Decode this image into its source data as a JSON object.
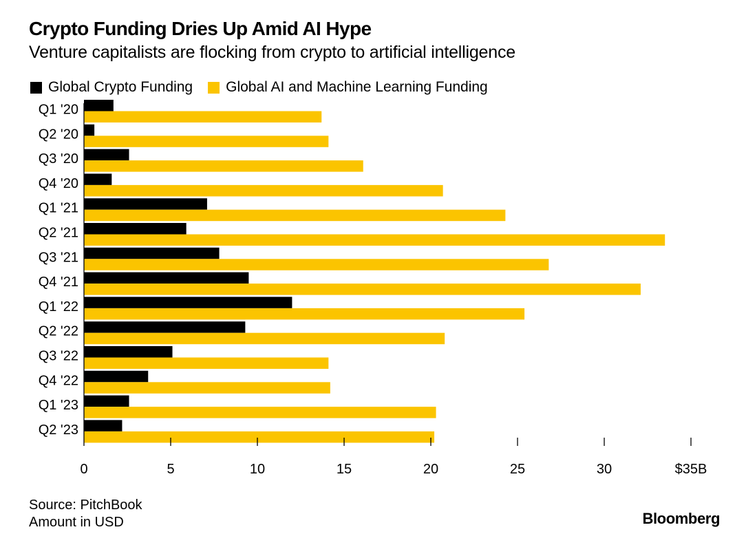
{
  "header": {
    "title": "Crypto Funding Dries Up Amid AI Hype",
    "subtitle": "Venture capitalists are flocking from crypto to artificial intelligence"
  },
  "legend": {
    "crypto": "Global Crypto Funding",
    "ai": "Global AI and Machine Learning Funding"
  },
  "colors": {
    "crypto": "#000000",
    "ai": "#fbc400",
    "grid": "#000000"
  },
  "chart_data": {
    "type": "bar",
    "orientation": "horizontal",
    "title": "Crypto Funding Dries Up Amid AI Hype",
    "subtitle": "Venture capitalists are flocking from crypto to artificial intelligence",
    "categories": [
      "Q1 '20",
      "Q2 '20",
      "Q3 '20",
      "Q4 '20",
      "Q1 '21",
      "Q2 '21",
      "Q3 '21",
      "Q4 '21",
      "Q1 '22",
      "Q2 '22",
      "Q3 '22",
      "Q4 '22",
      "Q1 '23",
      "Q2 '23"
    ],
    "series": [
      {
        "name": "Global Crypto Funding",
        "values": [
          1.7,
          0.6,
          2.6,
          1.6,
          7.1,
          5.9,
          7.8,
          9.5,
          12.0,
          9.3,
          5.1,
          3.7,
          2.6,
          2.2
        ]
      },
      {
        "name": "Global AI and Machine Learning Funding",
        "values": [
          13.7,
          14.1,
          16.1,
          20.7,
          24.3,
          33.5,
          26.8,
          32.1,
          25.4,
          20.8,
          14.1,
          14.2,
          20.3,
          20.2
        ]
      }
    ],
    "xticks": [
      0,
      5,
      10,
      15,
      20,
      25,
      30,
      35
    ],
    "xtick_labels": [
      "0",
      "5",
      "10",
      "15",
      "20",
      "25",
      "30",
      "$35B"
    ],
    "xlim": [
      0,
      35
    ],
    "xlabel": "",
    "ylabel": "",
    "legend_position": "top-left"
  },
  "footer": {
    "source": "Source: PitchBook",
    "note": "Amount in USD",
    "brand": "Bloomberg"
  }
}
